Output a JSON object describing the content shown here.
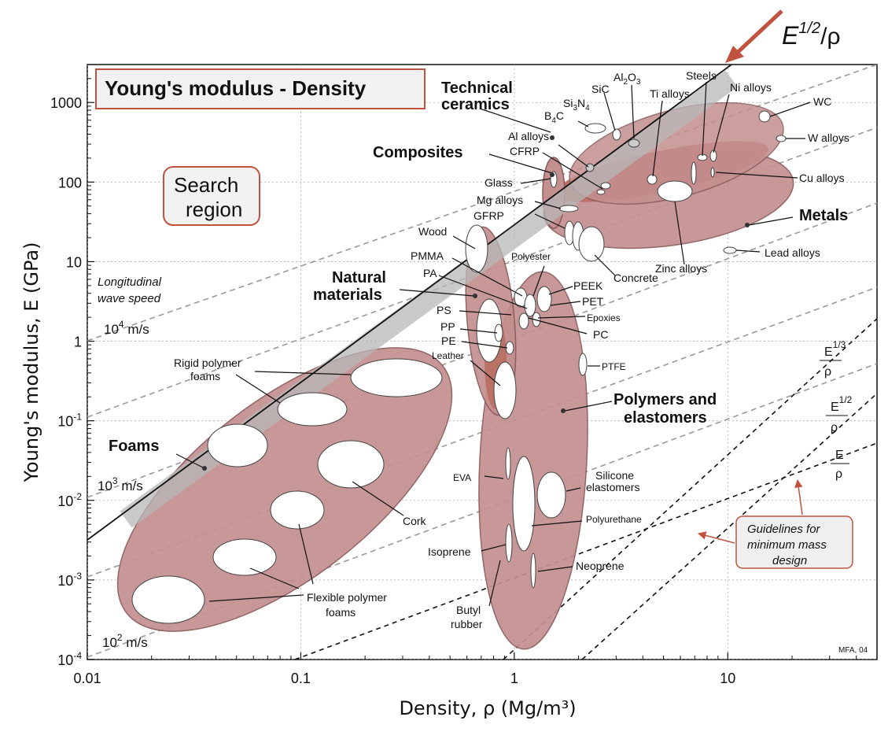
{
  "chart_data": {
    "type": "scatter",
    "title": "Young's modulus - Density",
    "xlabel": "Density, ρ  (Mg/m³)",
    "ylabel": "Young's modulus, E (GPa)",
    "x_scale": "log",
    "y_scale": "log",
    "xlim": [
      0.01,
      50
    ],
    "ylim": [
      0.0001,
      3000
    ],
    "grid": true,
    "x_ticks": [
      {
        "value": 0.01,
        "label": "0.01"
      },
      {
        "value": 0.1,
        "label": "0.1"
      },
      {
        "value": 1,
        "label": "1"
      },
      {
        "value": 10,
        "label": "10"
      }
    ],
    "y_ticks": [
      {
        "value": 1000,
        "base": "1000",
        "sup": ""
      },
      {
        "value": 100,
        "base": "100",
        "sup": ""
      },
      {
        "value": 10,
        "base": "10",
        "sup": ""
      },
      {
        "value": 1,
        "base": "1",
        "sup": ""
      },
      {
        "value": 0.1,
        "base": "10",
        "sup": "-1"
      },
      {
        "value": 0.01,
        "base": "10",
        "sup": "-2"
      },
      {
        "value": 0.001,
        "base": "10",
        "sup": "-3"
      },
      {
        "value": 0.0001,
        "base": "10",
        "sup": "-4"
      }
    ],
    "families": [
      {
        "name": "Technical ceramics",
        "rho": [
          2.0,
          15.0
        ],
        "E": [
          80,
          1000
        ]
      },
      {
        "name": "Composites",
        "rho": [
          1.5,
          2.0
        ],
        "E": [
          30,
          200
        ]
      },
      {
        "name": "Metals",
        "rho": [
          1.6,
          20.0
        ],
        "E": [
          15,
          600
        ]
      },
      {
        "name": "Natural materials",
        "rho": [
          0.55,
          1.2
        ],
        "E": [
          0.1,
          50
        ]
      },
      {
        "name": "Polymers and elastomers",
        "rho": [
          0.9,
          2.3
        ],
        "E": [
          0.0002,
          10
        ]
      },
      {
        "name": "Foams",
        "rho": [
          0.015,
          0.6
        ],
        "E": [
          0.0002,
          0.8
        ]
      }
    ],
    "materials": [
      {
        "name": "WC",
        "rho": 15.5,
        "E": 650
      },
      {
        "name": "W alloys",
        "rho": 18.5,
        "E": 380
      },
      {
        "name": "Steels",
        "rho": 7.8,
        "E": 210
      },
      {
        "name": "Ni alloys",
        "rho": 8.8,
        "E": 210
      },
      {
        "name": "Cu alloys",
        "rho": 8.9,
        "E": 130
      },
      {
        "name": "Ti alloys",
        "rho": 4.5,
        "E": 110
      },
      {
        "name": "Al alloys",
        "rho": 2.7,
        "E": 75
      },
      {
        "name": "Lead alloys",
        "rho": 11.0,
        "E": 15
      },
      {
        "name": "Zinc alloys",
        "rho": 6.5,
        "E": 90
      },
      {
        "name": "Concrete",
        "rho": 2.4,
        "E": 30
      },
      {
        "name": "Glass",
        "rho": 2.5,
        "E": 70
      },
      {
        "name": "Mg alloys",
        "rho": 1.8,
        "E": 45
      },
      {
        "name": "Al2O3",
        "rho": 3.9,
        "E": 380
      },
      {
        "name": "SiC",
        "rho": 3.2,
        "E": 430
      },
      {
        "name": "B4C",
        "rho": 2.5,
        "E": 450
      },
      {
        "name": "PEEK",
        "rho": 1.3,
        "E": 3.8
      },
      {
        "name": "PET",
        "rho": 1.35,
        "E": 3.0
      },
      {
        "name": "PC",
        "rho": 1.2,
        "E": 2.3
      },
      {
        "name": "PP",
        "rho": 0.9,
        "E": 1.3
      },
      {
        "name": "PE",
        "rho": 0.95,
        "E": 0.8
      },
      {
        "name": "PTFE",
        "rho": 2.2,
        "E": 0.5
      },
      {
        "name": "Silicone elastomers",
        "rho": 1.3,
        "E": 0.01
      },
      {
        "name": "Cork",
        "rho": 0.18,
        "E": 0.03
      }
    ],
    "guideline_exponents": [
      "1/3",
      "1/2",
      "1"
    ]
  },
  "title_box": {
    "text": "Young's modulus - Density"
  },
  "search_region": {
    "line1": "Search",
    "line2": "region"
  },
  "guideline_box": {
    "line1": "Guidelines for",
    "line2": "minimum mass",
    "line3": "design"
  },
  "marker": {
    "base": "E",
    "sup": "1/2",
    "tail": "/ρ"
  },
  "wave_speed": {
    "line1": "Longitudinal",
    "line2": "wave speed",
    "v4_base": "10",
    "v4_sup": "4",
    "v4_unit": " m/s",
    "v3_base": "10",
    "v3_sup": "3",
    "v3_unit": " m/s",
    "v2_base": "10",
    "v2_sup": "2",
    "v2_unit": " m/s"
  },
  "ratios": [
    {
      "num": "E",
      "sup": "1/3",
      "den": "ρ"
    },
    {
      "num": "E",
      "sup": "1/2",
      "den": "ρ"
    },
    {
      "num": "E",
      "sup": "",
      "den": "ρ"
    }
  ],
  "labels": {
    "technical_1": "Technical",
    "technical_2": "ceramics",
    "composites": "Composites",
    "metals": "Metals",
    "natural_1": "Natural",
    "natural_2": "materials",
    "polymers_1": "Polymers and",
    "polymers_2": "elastomers",
    "foams": "Foams",
    "sic": "SiC",
    "al2o3_a": "Al",
    "al2o3_b": "2",
    "al2o3_c": "O",
    "al2o3_d": "3",
    "si3n4_a": "Si",
    "si3n4_b": "3",
    "si3n4_c": "N",
    "si3n4_d": "4",
    "b4c_a": "B",
    "b4c_b": "4",
    "b4c_c": "C",
    "steels": "Steels",
    "ti_alloys": "Ti alloys",
    "ni_alloys": "Ni alloys",
    "wc": "WC",
    "w_alloys": "W alloys",
    "cu_alloys": "Cu alloys",
    "al_alloys": "Al alloys",
    "cfrp": "CFRP",
    "glass": "Glass",
    "mg_alloys": "Mg alloys",
    "gfrp": "GFRP",
    "wood": "Wood",
    "pmma": "PMMA",
    "pa": "PA",
    "polyester": "Polyester",
    "peek": "PEEK",
    "pet": "PET",
    "epoxies": "Epoxies",
    "ps": "PS",
    "pp": "PP",
    "pe": "PE",
    "pc": "PC",
    "leather": "Leather",
    "ptfe": "PTFE",
    "concrete": "Concrete",
    "zinc_alloys": "Zinc alloys",
    "lead_alloys": "Lead alloys",
    "rigid_1": "Rigid polymer",
    "rigid_2": "foams",
    "cork": "Cork",
    "flexible_1": "Flexible polymer",
    "flexible_2": "foams",
    "eva": "EVA",
    "silicone_1": "Silicone",
    "silicone_2": "elastomers",
    "polyurethane": "Polyurethane",
    "isoprene": "Isoprene",
    "neoprene": "Neoprene",
    "butyl_1": "Butyl",
    "butyl_2": "rubber"
  },
  "credit": "MFA, 04",
  "colors": {
    "envelope_fill": "#c48f8f",
    "envelope_stroke": "#8a5a5a",
    "inner_fill": "#b86a5c",
    "accent": "#c0533f",
    "band": "#b8b8b8",
    "guide_box": "#efefef"
  }
}
